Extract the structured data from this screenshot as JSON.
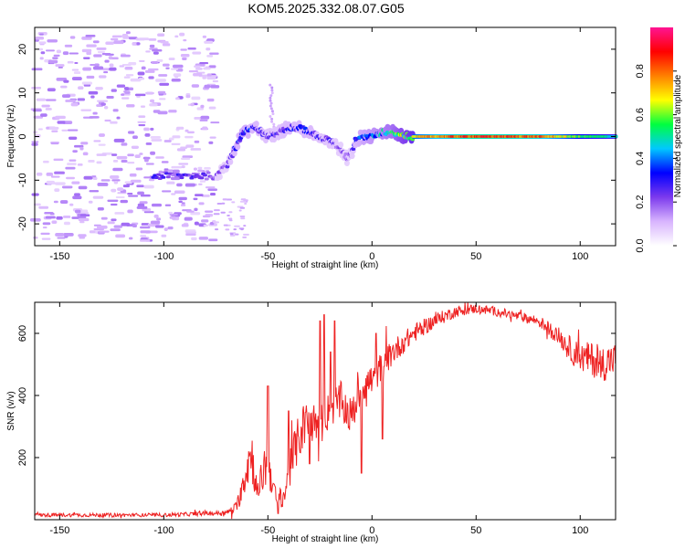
{
  "title": "KOM5.2025.332.08.07.G05",
  "chart_data": [
    {
      "type": "heatmap",
      "name": "spectrogram",
      "xlabel": "Height of straight line (km)",
      "ylabel": "Frequency (Hz)",
      "xlim": [
        -162,
        117
      ],
      "ylim": [
        -25,
        25
      ],
      "xticks": [
        -150,
        -100,
        -50,
        0,
        50,
        100
      ],
      "yticks": [
        -20,
        -10,
        0,
        10,
        20
      ],
      "colorbar": {
        "label": "Normalized spectral amplitude",
        "range": [
          0,
          1
        ],
        "ticks": [
          "0.0",
          "0.2",
          "0.4",
          "0.6",
          "0.8"
        ],
        "colors": [
          "#ffffff",
          "#d8b4fe",
          "#7c3aed",
          "#0000ff",
          "#00c8ff",
          "#00ff40",
          "#ffff00",
          "#ff8000",
          "#ff0000",
          "#ff1493"
        ]
      },
      "ridge": {
        "x": [
          -75,
          -70,
          -66,
          -62,
          -56,
          -50,
          -45,
          -40,
          -35,
          -30,
          -25,
          -20,
          -15,
          -12,
          -10,
          -8,
          -5,
          0,
          5,
          10,
          15,
          20,
          30,
          50,
          80,
          100,
          117
        ],
        "freq": [
          -9,
          -7,
          -3,
          1,
          2,
          0,
          1,
          2,
          2,
          1,
          0,
          -1,
          -3,
          -5,
          -4,
          -1,
          0,
          0,
          1,
          1,
          0,
          0,
          0,
          0,
          0,
          0,
          0
        ],
        "amplitude": [
          0.2,
          0.2,
          0.3,
          0.35,
          0.3,
          0.25,
          0.25,
          0.3,
          0.3,
          0.3,
          0.25,
          0.25,
          0.2,
          0.2,
          0.2,
          0.3,
          0.35,
          0.4,
          0.45,
          0.5,
          0.6,
          0.7,
          0.8,
          0.9,
          0.85,
          0.6,
          0.5
        ]
      },
      "spike": {
        "x": -48,
        "freq_range": [
          1,
          12
        ],
        "amplitude": 0.1
      },
      "low_band": {
        "x_range": [
          -105,
          -75
        ],
        "freq": -9,
        "amplitude": 0.25
      }
    },
    {
      "type": "line",
      "name": "snr",
      "xlabel": "Height of straight line (km)",
      "ylabel": "SNR (v/v)",
      "xlim": [
        -162,
        117
      ],
      "ylim": [
        0,
        700
      ],
      "xticks": [
        -150,
        -100,
        -50,
        0,
        50,
        100
      ],
      "yticks": [
        200,
        400,
        600
      ],
      "color": "#ee2222",
      "envelope": {
        "x": [
          -162,
          -100,
          -70,
          -65,
          -62,
          -58,
          -55,
          -52,
          -50,
          -46,
          -42,
          -38,
          -34,
          -30,
          -25,
          -20,
          -15,
          -10,
          -5,
          0,
          10,
          20,
          30,
          40,
          50,
          60,
          70,
          80,
          90,
          95,
          100,
          105,
          110,
          117
        ],
        "mean": [
          15,
          15,
          22,
          40,
          120,
          220,
          80,
          160,
          200,
          60,
          80,
          200,
          290,
          320,
          300,
          360,
          380,
          330,
          430,
          450,
          540,
          600,
          640,
          670,
          680,
          670,
          655,
          640,
          590,
          550,
          520,
          520,
          500,
          520
        ],
        "noise": [
          10,
          10,
          12,
          30,
          90,
          150,
          60,
          120,
          150,
          50,
          60,
          120,
          130,
          120,
          110,
          100,
          110,
          100,
          100,
          90,
          70,
          50,
          40,
          30,
          25,
          25,
          25,
          30,
          50,
          70,
          80,
          90,
          100,
          90
        ]
      },
      "peaks": [
        {
          "x": -50,
          "y": 430
        },
        {
          "x": -40,
          "y": 350
        },
        {
          "x": -30,
          "y": 630
        },
        {
          "x": -25,
          "y": 640
        },
        {
          "x": -23,
          "y": 660
        },
        {
          "x": -20,
          "y": 540
        },
        {
          "x": -18,
          "y": 640
        },
        {
          "x": -5,
          "y": 470
        },
        {
          "x": 2,
          "y": 600
        }
      ],
      "dips": [
        {
          "x": -45,
          "y": 20
        },
        {
          "x": -30,
          "y": 180
        },
        {
          "x": -5,
          "y": 150
        },
        {
          "x": 5,
          "y": 260
        }
      ]
    }
  ]
}
